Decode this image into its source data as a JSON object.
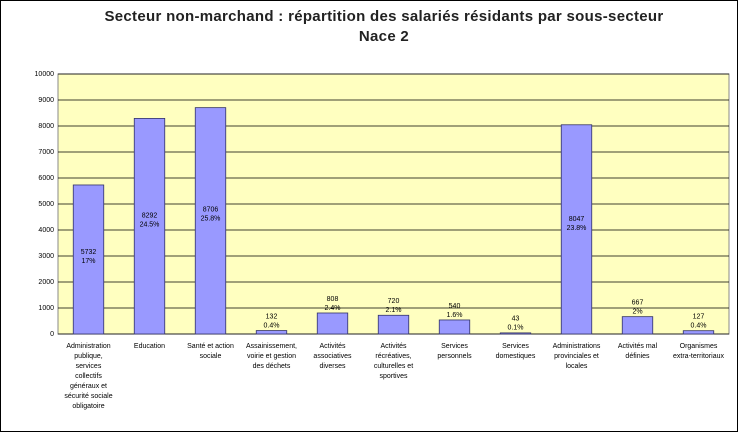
{
  "chart_data": {
    "type": "bar",
    "title": "Secteur non-marchand : répartition des salariés résidants par sous-secteur Nace 2",
    "categories": [
      "Administration publique, services collectifs généraux et sécurité sociale obligatoire",
      "Education",
      "Santé et action sociale",
      "Assainissement, voirie et gestion des déchets",
      "Activités associatives diverses",
      "Activités récréatives, culturelles et sportives",
      "Services personnels",
      "Services domestiques",
      "Administrations provinciales et locales",
      "Activités mal définies",
      "Organismes extra-territoriaux"
    ],
    "values": [
      5732,
      8292,
      8706,
      132,
      808,
      720,
      540,
      43,
      8047,
      667,
      127
    ],
    "percent_labels": [
      "17%",
      "24.5%",
      "25.8%",
      "0.4%",
      "2.4%",
      "2.1%",
      "1.6%",
      "0.1%",
      "23.8%",
      "2%",
      "0.4%"
    ],
    "color": "#9999ff",
    "ylim": [
      0,
      10000
    ],
    "yticks": [
      0,
      1000,
      2000,
      3000,
      4000,
      5000,
      6000,
      7000,
      8000,
      9000,
      10000
    ],
    "grid": true
  }
}
